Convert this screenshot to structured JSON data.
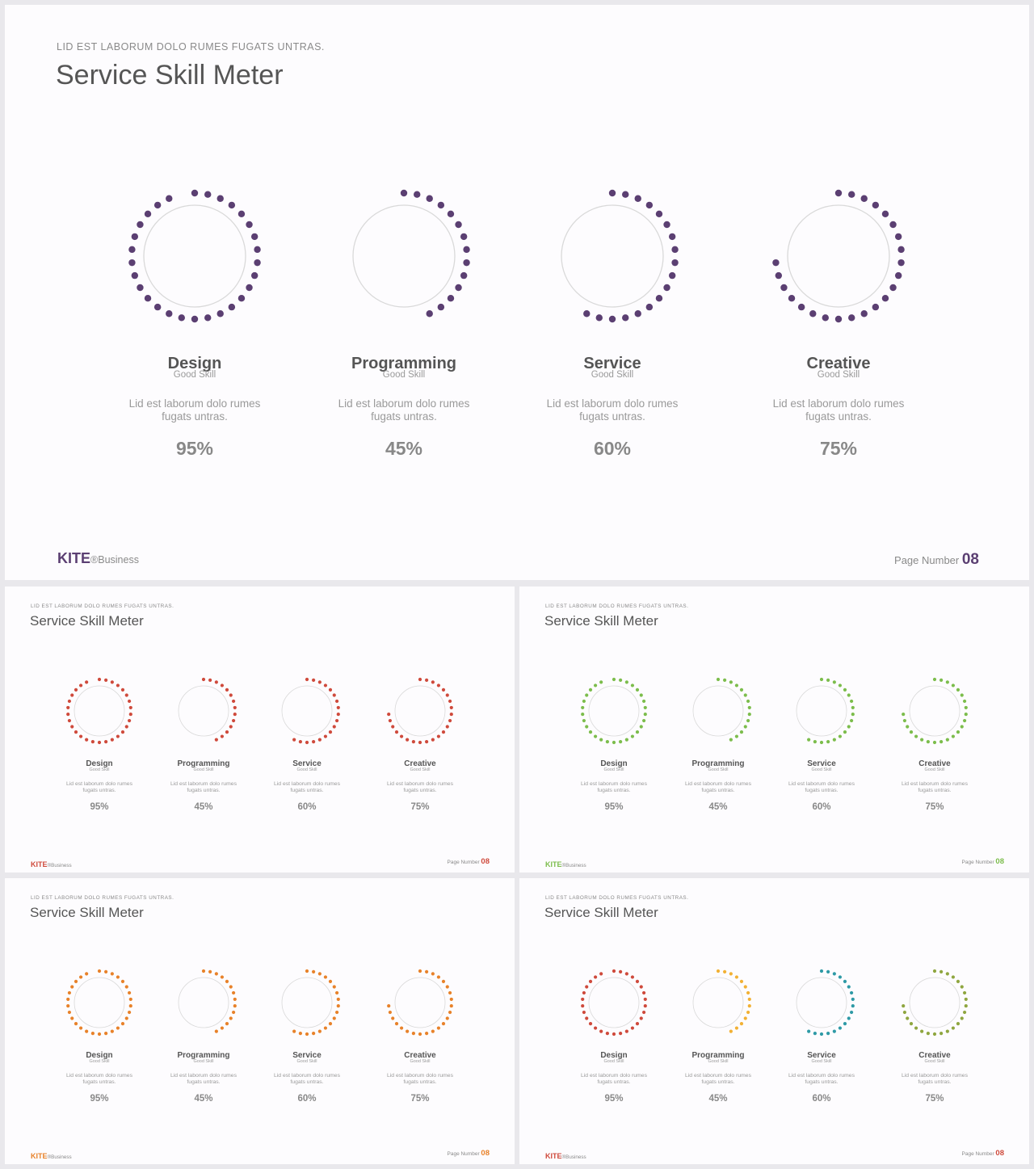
{
  "eyebrow": "LID EST LABORUM  DOLO  RUMES  FUGATS  UNTRAS.",
  "title": "Service Skill Meter",
  "brand": {
    "name": "KITE",
    "suffix": "®Business"
  },
  "page": {
    "label": "Page  Number ",
    "number": "08"
  },
  "skills": [
    {
      "name": "Design",
      "sub": "Good Skill",
      "desc": "Lid est laborum dolo rumes fugats untras.",
      "percent_label": "95%",
      "percent": 95
    },
    {
      "name": "Programming",
      "sub": "Good Skill",
      "desc": "Lid est laborum dolo rumes fugats untras.",
      "percent_label": "45%",
      "percent": 45
    },
    {
      "name": "Service",
      "sub": "Good Skill",
      "desc": "Lid est laborum dolo rumes fugats untras.",
      "percent_label": "60%",
      "percent": 60
    },
    {
      "name": "Creative",
      "sub": "Good Skill",
      "desc": "Lid est laborum dolo rumes fugats untras.",
      "percent_label": "75%",
      "percent": 75
    }
  ],
  "themes": [
    {
      "slide": "main",
      "accent": "#5b3f72",
      "dot_colors": [
        "#5b3f72",
        "#5b3f72",
        "#5b3f72",
        "#5b3f72"
      ]
    },
    {
      "slide": "red",
      "accent": "#cf4a3c",
      "dot_colors": [
        "#cf4a3c",
        "#cf4a3c",
        "#cf4a3c",
        "#cf4a3c"
      ]
    },
    {
      "slide": "green",
      "accent": "#7cbd4c",
      "dot_colors": [
        "#7cbd4c",
        "#7cbd4c",
        "#7cbd4c",
        "#7cbd4c"
      ]
    },
    {
      "slide": "orange",
      "accent": "#e8822a",
      "dot_colors": [
        "#e8822a",
        "#e8822a",
        "#e8822a",
        "#e8822a"
      ]
    },
    {
      "slide": "multi",
      "accent": "#cf4a3c",
      "dot_colors": [
        "#cf4a3c",
        "#f2b134",
        "#2e9aa6",
        "#8fa640"
      ]
    }
  ]
}
